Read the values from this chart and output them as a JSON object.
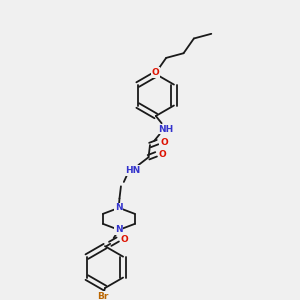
{
  "bg_color": "#f0f0f0",
  "bond_color": "#1a1a1a",
  "atom_colors": {
    "N": "#3333cc",
    "O": "#dd1100",
    "Br": "#bb6600",
    "C": "#1a1a1a",
    "H": "#3333cc"
  },
  "lw": 1.3,
  "fs": 6.5
}
